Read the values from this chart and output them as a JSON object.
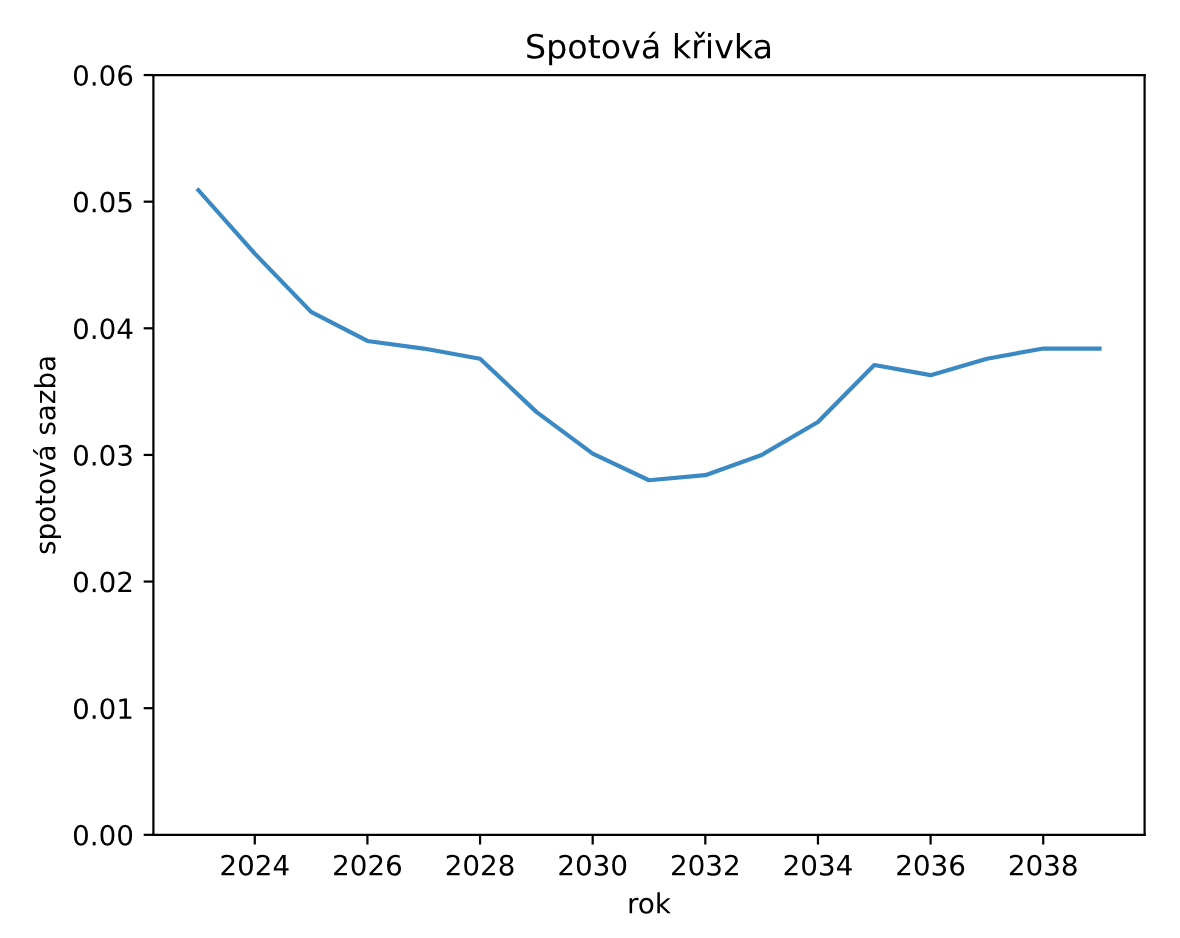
{
  "chart_data": {
    "type": "line",
    "title": "Spotová křivka",
    "xlabel": "rok",
    "ylabel": "spotová sazba",
    "x": [
      2023,
      2024,
      2025,
      2026,
      2027,
      2028,
      2029,
      2030,
      2031,
      2032,
      2033,
      2034,
      2035,
      2036,
      2037,
      2038,
      2039
    ],
    "series": [
      {
        "color": "#3a89c3",
        "values": [
          0.0509,
          0.0459,
          0.0413,
          0.039,
          0.0384,
          0.0376,
          0.0334,
          0.0301,
          0.028,
          0.0284,
          0.03,
          0.0326,
          0.0371,
          0.0363,
          0.0376,
          0.0384,
          0.0384
        ]
      }
    ],
    "xlim": [
      2022.2,
      2039.8
    ],
    "xticks": [
      2024,
      2026,
      2028,
      2030,
      2032,
      2034,
      2036,
      2038
    ],
    "ylim": [
      0,
      0.06
    ],
    "yticks": [
      {
        "value": 0,
        "label": "0.00"
      },
      {
        "value": 0.01,
        "label": "0.01"
      },
      {
        "value": 0.02,
        "label": "0.02"
      },
      {
        "value": 0.03,
        "label": "0.03"
      },
      {
        "value": 0.04,
        "label": "0.04"
      },
      {
        "value": 0.05,
        "label": "0.05"
      },
      {
        "value": 0.06,
        "label": "0.06"
      }
    ],
    "grid": false
  }
}
